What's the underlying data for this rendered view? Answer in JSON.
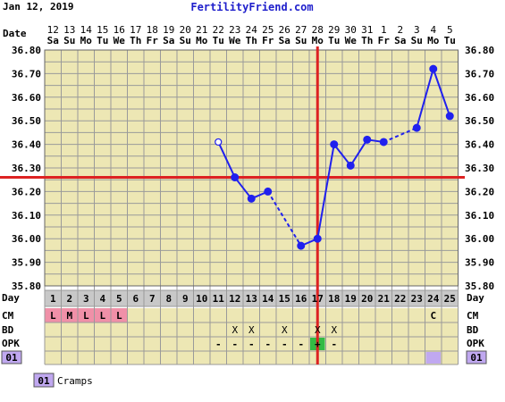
{
  "header": {
    "date_label": "Jan 12, 2019",
    "site": "FertilityFriend.com"
  },
  "labels": {
    "date": "Date",
    "day": "Day",
    "cm": "CM",
    "bd": "BD",
    "opk": "OPK",
    "custom_code": "01",
    "custom_name": "Cramps"
  },
  "colors": {
    "background": "#ede7b4",
    "grid": "#9a9a9a",
    "series": "#2020ee",
    "coverline": "#dd2222",
    "ovulation": "#dd2222",
    "menstruation": "#f090a8",
    "opk_positive": "#33bb44",
    "custom_marker": "#c0a8f0",
    "day_row": "#c8c8c8"
  },
  "chart_data": {
    "type": "line",
    "title": "",
    "xlabel": "",
    "ylabel": "",
    "days": [
      1,
      2,
      3,
      4,
      5,
      6,
      7,
      8,
      9,
      10,
      11,
      12,
      13,
      14,
      15,
      16,
      17,
      18,
      19,
      20,
      21,
      22,
      23,
      24,
      25
    ],
    "date_numbers": [
      "12",
      "13",
      "14",
      "15",
      "16",
      "17",
      "18",
      "19",
      "20",
      "21",
      "22",
      "23",
      "24",
      "25",
      "26",
      "27",
      "28",
      "29",
      "30",
      "31",
      "1",
      "2",
      "3",
      "4",
      "5"
    ],
    "weekdays": [
      "Sa",
      "Su",
      "Mo",
      "Tu",
      "We",
      "Th",
      "Fr",
      "Sa",
      "Su",
      "Mo",
      "Tu",
      "We",
      "Th",
      "Fr",
      "Sa",
      "Su",
      "Mo",
      "Tu",
      "We",
      "Th",
      "Fr",
      "Sa",
      "Su",
      "Mo",
      "Tu"
    ],
    "y_ticks": [
      "35.80",
      "35.90",
      "36.00",
      "36.10",
      "36.20",
      "36.30",
      "36.40",
      "36.50",
      "36.60",
      "36.70",
      "36.80"
    ],
    "ylim": [
      35.8,
      36.8
    ],
    "temperatures": [
      null,
      null,
      null,
      null,
      null,
      null,
      null,
      null,
      null,
      null,
      36.41,
      36.26,
      36.17,
      36.2,
      null,
      35.97,
      36.0,
      36.4,
      36.31,
      36.42,
      36.41,
      null,
      36.47,
      36.72,
      36.52
    ],
    "open_points": [
      11
    ],
    "coverline": 36.26,
    "ovulation_day": 17,
    "cm": [
      "L",
      "M",
      "L",
      "L",
      "L",
      "",
      "",
      "",
      "",
      "",
      "",
      "",
      "",
      "",
      "",
      "",
      "",
      "",
      "",
      "",
      "",
      "",
      "",
      "C",
      ""
    ],
    "menstruation_days": [
      1,
      2,
      3,
      4,
      5
    ],
    "bd": [
      "",
      "",
      "",
      "",
      "",
      "",
      "",
      "",
      "",
      "",
      "",
      "X",
      "X",
      "",
      "X",
      "",
      "X",
      "X",
      "",
      "",
      "",
      "",
      "",
      "",
      ""
    ],
    "opk": [
      "",
      "",
      "",
      "",
      "",
      "",
      "",
      "",
      "",
      "",
      "-",
      "-",
      "-",
      "-",
      "-",
      "-",
      "+",
      "-",
      "",
      "",
      "",
      "",
      "",
      "",
      ""
    ],
    "custom_days": [
      24
    ]
  }
}
